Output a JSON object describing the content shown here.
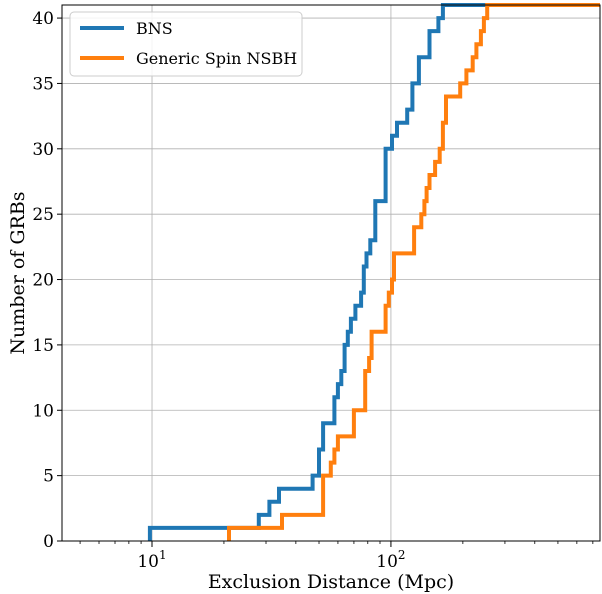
{
  "chart_data": {
    "type": "line",
    "subtype": "step-cumulative",
    "xlabel": "Exclusion Distance (Mpc)",
    "ylabel": "Number of GRBs",
    "xscale": "log",
    "xlim": [
      4.2,
      750
    ],
    "ylim": [
      0,
      41
    ],
    "x_ticks": [
      {
        "value": 10,
        "base": "10",
        "exp": "1"
      },
      {
        "value": 100,
        "base": "10",
        "exp": "2"
      }
    ],
    "y_ticks": [
      0,
      5,
      10,
      15,
      20,
      25,
      30,
      35,
      40
    ],
    "grid": true,
    "legend_position": "top-left",
    "series": [
      {
        "name": "BNS",
        "color": "#1f77b4",
        "steps": [
          [
            9.8,
            0
          ],
          [
            9.8,
            1
          ],
          [
            28,
            1
          ],
          [
            28,
            2
          ],
          [
            31,
            2
          ],
          [
            31,
            3
          ],
          [
            34,
            3
          ],
          [
            34,
            4
          ],
          [
            47,
            4
          ],
          [
            47,
            5
          ],
          [
            50,
            5
          ],
          [
            50,
            7
          ],
          [
            52,
            7
          ],
          [
            52,
            9
          ],
          [
            58,
            9
          ],
          [
            58,
            11
          ],
          [
            60,
            11
          ],
          [
            60,
            12
          ],
          [
            62,
            12
          ],
          [
            62,
            13
          ],
          [
            64,
            13
          ],
          [
            64,
            15
          ],
          [
            66,
            15
          ],
          [
            66,
            16
          ],
          [
            68,
            16
          ],
          [
            68,
            17
          ],
          [
            71,
            17
          ],
          [
            71,
            18
          ],
          [
            75,
            18
          ],
          [
            75,
            19
          ],
          [
            77,
            19
          ],
          [
            77,
            21
          ],
          [
            79,
            21
          ],
          [
            79,
            22
          ],
          [
            82,
            22
          ],
          [
            82,
            23
          ],
          [
            86,
            23
          ],
          [
            86,
            26
          ],
          [
            95,
            26
          ],
          [
            95,
            30
          ],
          [
            101,
            30
          ],
          [
            101,
            31
          ],
          [
            106,
            31
          ],
          [
            106,
            32
          ],
          [
            117,
            32
          ],
          [
            117,
            33
          ],
          [
            123,
            33
          ],
          [
            123,
            35
          ],
          [
            131,
            35
          ],
          [
            131,
            37
          ],
          [
            145,
            37
          ],
          [
            145,
            39
          ],
          [
            158,
            39
          ],
          [
            158,
            40
          ],
          [
            165,
            40
          ],
          [
            165,
            41
          ],
          [
            750,
            41
          ]
        ]
      },
      {
        "name": "Generic Spin NSBH",
        "color": "#ff7f0e",
        "steps": [
          [
            21,
            0
          ],
          [
            21,
            1
          ],
          [
            35,
            1
          ],
          [
            35,
            2
          ],
          [
            52,
            2
          ],
          [
            52,
            5
          ],
          [
            56,
            5
          ],
          [
            56,
            6
          ],
          [
            58,
            6
          ],
          [
            58,
            7
          ],
          [
            60,
            7
          ],
          [
            60,
            8
          ],
          [
            70,
            8
          ],
          [
            70,
            10
          ],
          [
            78,
            10
          ],
          [
            78,
            13
          ],
          [
            81,
            13
          ],
          [
            81,
            14
          ],
          [
            83,
            14
          ],
          [
            83,
            16
          ],
          [
            95,
            16
          ],
          [
            95,
            18
          ],
          [
            98,
            18
          ],
          [
            98,
            19
          ],
          [
            101,
            19
          ],
          [
            101,
            20
          ],
          [
            103,
            20
          ],
          [
            103,
            22
          ],
          [
            125,
            22
          ],
          [
            125,
            24
          ],
          [
            134,
            24
          ],
          [
            134,
            25
          ],
          [
            138,
            25
          ],
          [
            138,
            26
          ],
          [
            141,
            26
          ],
          [
            141,
            27
          ],
          [
            145,
            27
          ],
          [
            145,
            28
          ],
          [
            153,
            28
          ],
          [
            153,
            29
          ],
          [
            160,
            29
          ],
          [
            160,
            30
          ],
          [
            165,
            30
          ],
          [
            165,
            32
          ],
          [
            170,
            32
          ],
          [
            170,
            34
          ],
          [
            195,
            34
          ],
          [
            195,
            35
          ],
          [
            207,
            35
          ],
          [
            207,
            36
          ],
          [
            220,
            36
          ],
          [
            220,
            37
          ],
          [
            228,
            37
          ],
          [
            228,
            38
          ],
          [
            238,
            38
          ],
          [
            238,
            39
          ],
          [
            245,
            39
          ],
          [
            245,
            40
          ],
          [
            253,
            40
          ],
          [
            253,
            41
          ],
          [
            750,
            41
          ]
        ]
      }
    ]
  }
}
